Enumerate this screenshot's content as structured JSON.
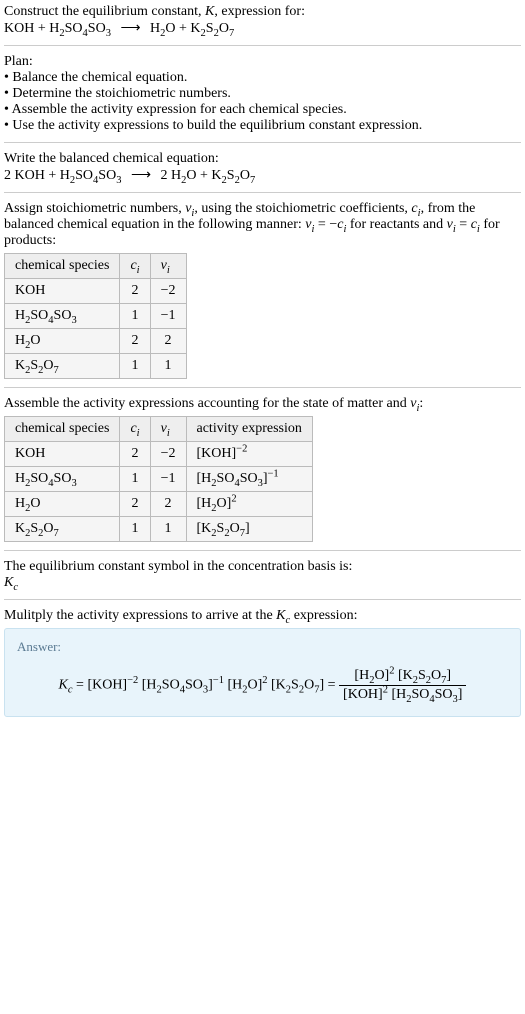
{
  "intro": {
    "line1": "Construct the equilibrium constant, ",
    "K": "K",
    "line1b": ", expression for:",
    "eq_lhs_1": "KOH",
    "eq_plus": " + ",
    "eq_lhs_2a": "H",
    "eq_lhs_2a_sub": "2",
    "eq_lhs_2b": "SO",
    "eq_lhs_2b_sub": "4",
    "eq_lhs_2c": "SO",
    "eq_lhs_2c_sub": "3",
    "arrow": "⟶",
    "eq_rhs_1a": "H",
    "eq_rhs_1a_sub": "2",
    "eq_rhs_1b": "O",
    "eq_rhs_2a": "K",
    "eq_rhs_2a_sub": "2",
    "eq_rhs_2b": "S",
    "eq_rhs_2b_sub": "2",
    "eq_rhs_2c": "O",
    "eq_rhs_2c_sub": "7"
  },
  "plan": {
    "title": "Plan:",
    "items": [
      "Balance the chemical equation.",
      "Determine the stoichiometric numbers.",
      "Assemble the activity expression for each chemical species.",
      "Use the activity expressions to build the equilibrium constant expression."
    ]
  },
  "balanced": {
    "title": "Write the balanced chemical equation:",
    "c1": "2 ",
    "sp1": "KOH",
    "plus": " + ",
    "sp2a": "H",
    "sp2a_sub": "2",
    "sp2b": "SO",
    "sp2b_sub": "4",
    "sp2c": "SO",
    "sp2c_sub": "3",
    "arrow": "⟶",
    "c3": " 2 ",
    "sp3a": "H",
    "sp3a_sub": "2",
    "sp3b": "O",
    "sp4a": "K",
    "sp4a_sub": "2",
    "sp4b": "S",
    "sp4b_sub": "2",
    "sp4c": "O",
    "sp4c_sub": "7"
  },
  "assign": {
    "text1": "Assign stoichiometric numbers, ",
    "nu": "ν",
    "nu_sub": "i",
    "text2": ", using the stoichiometric coefficients, ",
    "c": "c",
    "c_sub": "i",
    "text3": ", from the balanced chemical equation in the following manner: ",
    "rel1a": "ν",
    "rel1a_sub": "i",
    "rel1_eq": " = −",
    "rel1b": "c",
    "rel1b_sub": "i",
    "text4": " for reactants and ",
    "rel2a": "ν",
    "rel2a_sub": "i",
    "rel2_eq": " = ",
    "rel2b": "c",
    "rel2b_sub": "i",
    "text5": " for products:"
  },
  "table1": {
    "h1": "chemical species",
    "h2": "c",
    "h2_sub": "i",
    "h3": "ν",
    "h3_sub": "i",
    "rows": [
      {
        "sp": "KOH",
        "c": "2",
        "nu": "−2",
        "subs": []
      },
      {
        "sp": "H2SO4SO3",
        "c": "1",
        "nu": "−1"
      },
      {
        "sp": "H2O",
        "c": "2",
        "nu": "2"
      },
      {
        "sp": "K2S2O7",
        "c": "1",
        "nu": "1"
      }
    ]
  },
  "assemble": {
    "text1": "Assemble the activity expressions accounting for the state of matter and ",
    "nu": "ν",
    "nu_sub": "i",
    "text2": ":"
  },
  "table2": {
    "h1": "chemical species",
    "h2": "c",
    "h2_sub": "i",
    "h3": "ν",
    "h3_sub": "i",
    "h4": "activity expression",
    "rows": [
      {
        "c": "2",
        "nu": "−2",
        "exp": "−2"
      },
      {
        "c": "1",
        "nu": "−1",
        "exp": "−1"
      },
      {
        "c": "2",
        "nu": "2",
        "exp": "2"
      },
      {
        "c": "1",
        "nu": "1",
        "exp": ""
      }
    ]
  },
  "symbol": {
    "text": "The equilibrium constant symbol in the concentration basis is:",
    "K": "K",
    "K_sub": "c"
  },
  "multiply": {
    "text1": "Mulitply the activity expressions to arrive at the ",
    "K": "K",
    "K_sub": "c",
    "text2": " expression:"
  },
  "answer": {
    "label": "Answer:",
    "Kc": "K",
    "Kc_sub": "c",
    "eq": " = ",
    "exp_m2": "−2",
    "exp_m1": "−1",
    "exp_2": "2"
  }
}
